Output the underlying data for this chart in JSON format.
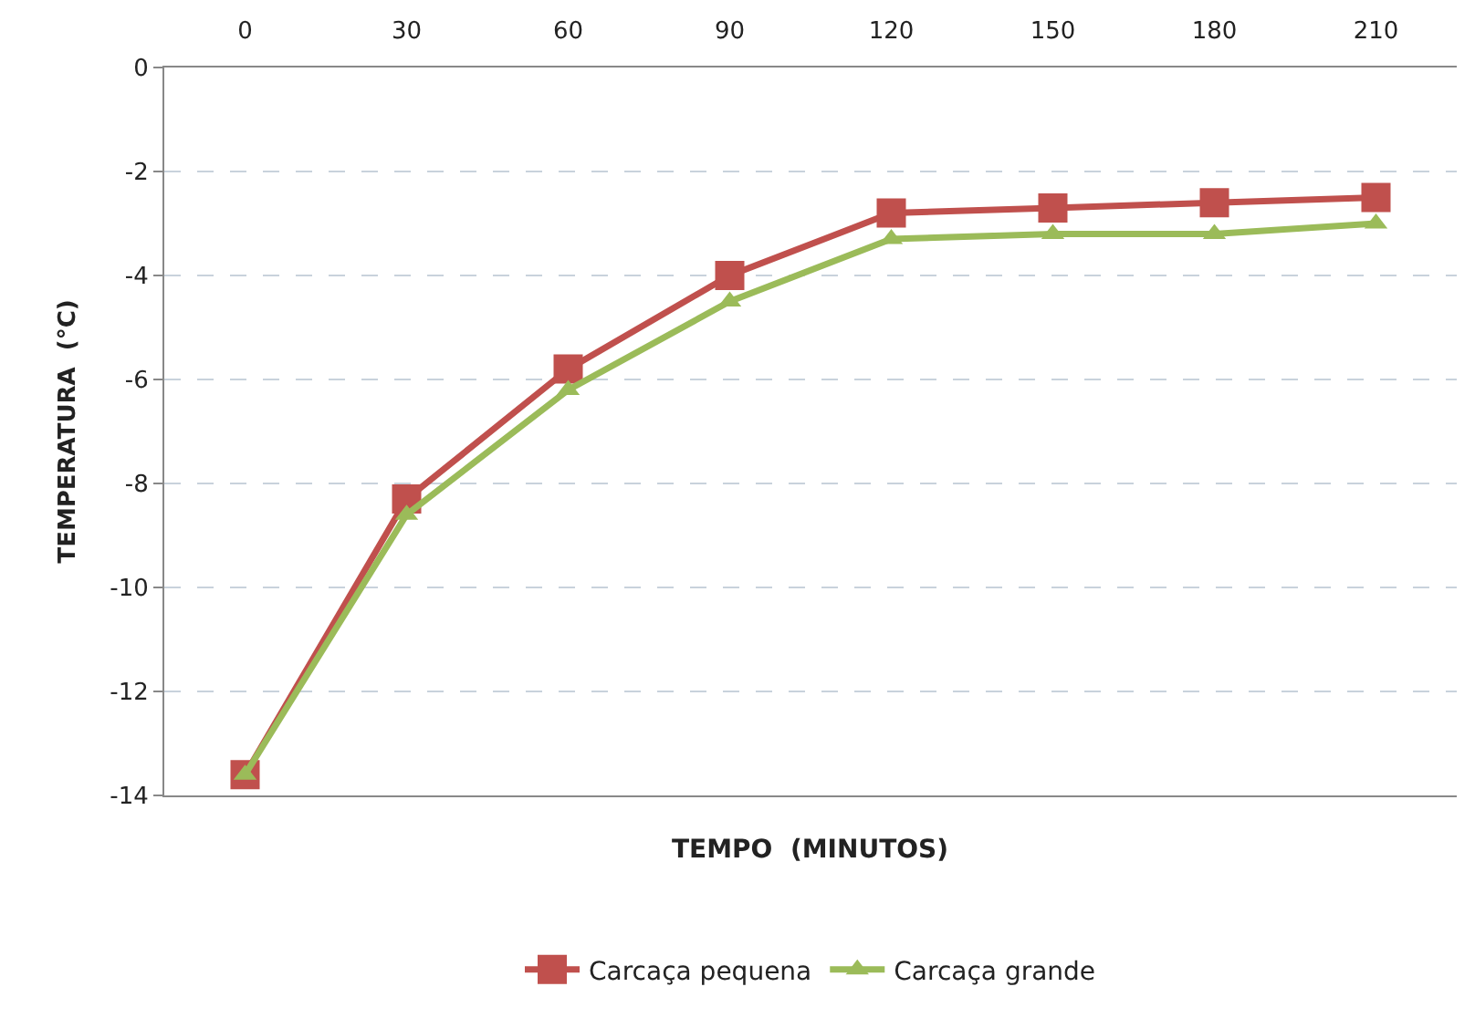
{
  "chart_data": {
    "type": "line",
    "xlabel": "TEMPO  (MINUTOS)",
    "ylabel": "TEMPERATURA  (°C)",
    "categories": [
      "0",
      "30",
      "60",
      "90",
      "120",
      "150",
      "180",
      "210"
    ],
    "series": [
      {
        "name": "Carcaça pequena",
        "color": "#c0504d",
        "marker": "square",
        "values": [
          -13.6,
          -8.3,
          -5.8,
          -4.0,
          -2.8,
          -2.7,
          -2.6,
          -2.5
        ]
      },
      {
        "name": "Carcaça grande",
        "color": "#9bbb59",
        "marker": "triangle",
        "values": [
          -13.6,
          -8.6,
          -6.2,
          -4.5,
          -3.3,
          -3.2,
          -3.2,
          -3.0
        ]
      }
    ],
    "ylim": [
      -14,
      0
    ],
    "yticks": [
      -14,
      -12,
      -10,
      -8,
      -6,
      -4,
      -2,
      0
    ],
    "grid": "y",
    "legend": "bottom",
    "line_style": "solid"
  }
}
